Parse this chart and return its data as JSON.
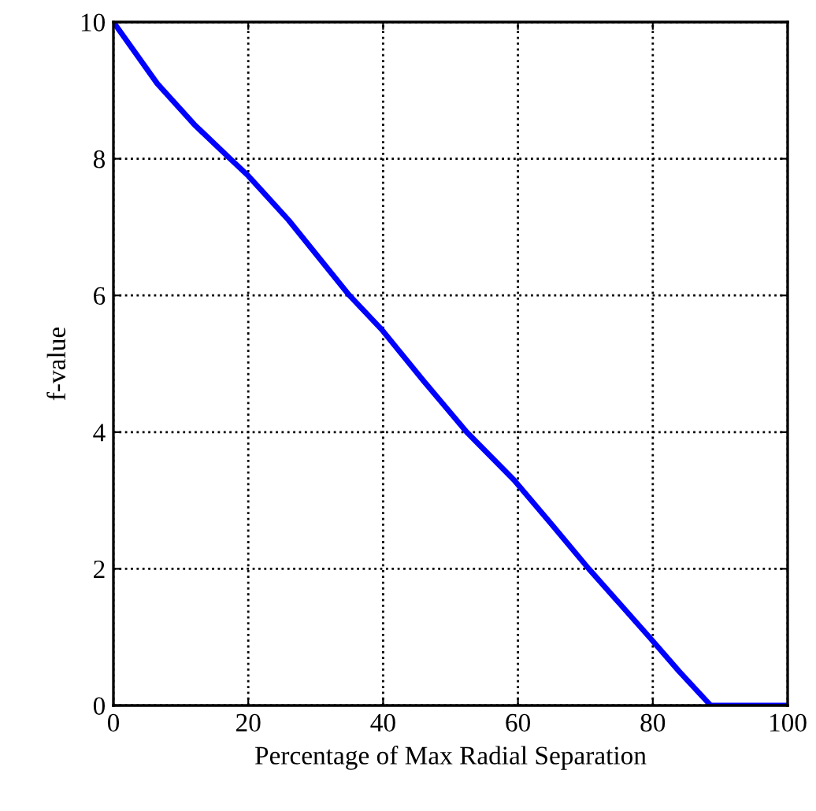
{
  "chart_data": {
    "type": "line",
    "xlabel": "Percentage of Max Radial Separation",
    "ylabel": "f-value",
    "x": [
      0,
      6.5,
      12,
      17.3,
      20,
      26,
      35,
      39.8,
      46,
      52.4,
      59.4,
      65,
      70.5,
      75,
      79.5,
      83.9,
      88.6,
      100
    ],
    "series": [
      {
        "color": "#0000ff",
        "values": [
          10,
          9.1,
          8.5,
          8,
          7.75,
          7.1,
          6,
          5.5,
          4.75,
          4,
          3.3,
          2.65,
          2,
          1.5,
          1,
          0.5,
          0,
          0
        ]
      }
    ],
    "xlim": [
      0,
      100
    ],
    "ylim": [
      0,
      10
    ],
    "xticks": [
      0,
      20,
      40,
      60,
      80,
      100
    ],
    "yticks": [
      0,
      2,
      4,
      6,
      8,
      10
    ],
    "grid": true,
    "line_style": "solid",
    "marker": "none"
  }
}
